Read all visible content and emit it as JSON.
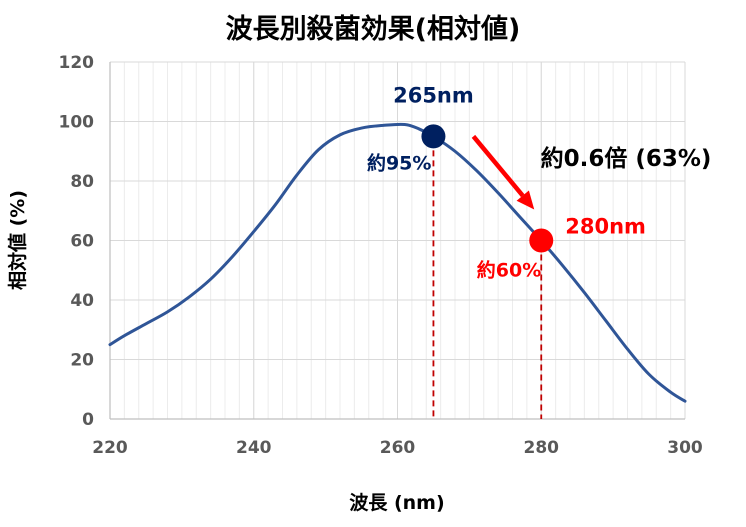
{
  "chart_data": {
    "type": "line",
    "title": "波長別殺菌効果(相対値)",
    "xlabel": "波長 (nm)",
    "ylabel": "相対値 (%)",
    "xlim": [
      220,
      300
    ],
    "ylim": [
      0,
      120
    ],
    "x_ticks": [
      220,
      240,
      260,
      280,
      300
    ],
    "y_ticks": [
      0,
      20,
      40,
      60,
      80,
      100,
      120
    ],
    "grid": "vertical minor lines and horizontal major lines",
    "series": [
      {
        "color": "#2f5597",
        "x": [
          220,
          222,
          225,
          228,
          231,
          234,
          237,
          240,
          243,
          246,
          249,
          252,
          255,
          258,
          261,
          263,
          265,
          268,
          271,
          274,
          277,
          280,
          283,
          286,
          289,
          292,
          295,
          298,
          300
        ],
        "y": [
          25,
          28,
          32,
          36,
          41,
          47,
          54.5,
          63,
          72,
          82,
          90.5,
          95.5,
          97.8,
          98.7,
          99,
          97.5,
          95,
          90,
          83.5,
          76,
          68,
          60,
          51.5,
          42.5,
          33,
          23.5,
          15,
          9,
          6
        ]
      }
    ],
    "markers": [
      {
        "x": 265,
        "y": 95,
        "color": "#002060",
        "label": "265nm",
        "value_label": "約95%"
      },
      {
        "x": 280,
        "y": 60,
        "color": "#ff0000",
        "label": "280nm",
        "value_label": "約60%"
      }
    ],
    "annotation": "約0.6倍 (63%)",
    "colors": {
      "line": "#2f5597",
      "marker_265": "#002060",
      "marker_280": "#ff0000",
      "arrow": "#ff0000",
      "dashed": "#c00000",
      "grid": "#d9d9d9",
      "tick_text": "#595959"
    }
  }
}
